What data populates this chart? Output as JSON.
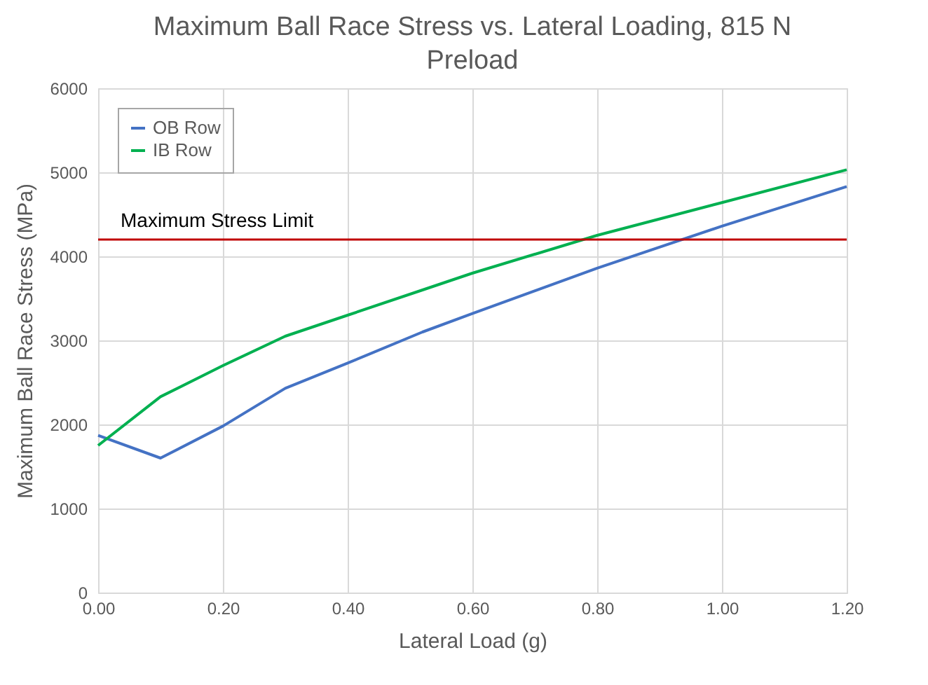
{
  "chart_data": {
    "type": "line",
    "title": "Maximum Ball Race Stress vs. Lateral Loading, 815 N Preload",
    "xlabel": "Lateral Load (g)",
    "ylabel": "Maximum Ball Race Stress (MPa)",
    "x": [
      0,
      0.1,
      0.2,
      0.3,
      0.4,
      0.52,
      0.6,
      0.8,
      1.0,
      1.2
    ],
    "series": [
      {
        "name": "OB Row",
        "color": "#4472c4",
        "values": [
          1870,
          1600,
          1980,
          2430,
          2730,
          3100,
          3320,
          3860,
          4360,
          4830
        ]
      },
      {
        "name": "IB Row",
        "color": "#00b050",
        "values": [
          1750,
          2330,
          2700,
          3050,
          3300,
          3600,
          3800,
          4250,
          4640,
          5030
        ]
      }
    ],
    "ref_lines": [
      {
        "axis": "y",
        "value": 4200,
        "label": "Maximum Stress Limit",
        "color": "#c00000"
      }
    ],
    "xlim": [
      0,
      1.2
    ],
    "xticks": [
      {
        "value": 0,
        "label": "0.00"
      },
      {
        "value": 0.2,
        "label": "0.20"
      },
      {
        "value": 0.4,
        "label": "0.40"
      },
      {
        "value": 0.6,
        "label": "0.60"
      },
      {
        "value": 0.8,
        "label": "0.80"
      },
      {
        "value": 1.0,
        "label": "1.00"
      },
      {
        "value": 1.2,
        "label": "1.20"
      }
    ],
    "ylim": [
      0,
      6000
    ],
    "yticks": [
      0,
      1000,
      2000,
      3000,
      4000,
      5000,
      6000
    ],
    "grid": true,
    "legend": "top left",
    "marker": "none",
    "line_style": "solid"
  }
}
